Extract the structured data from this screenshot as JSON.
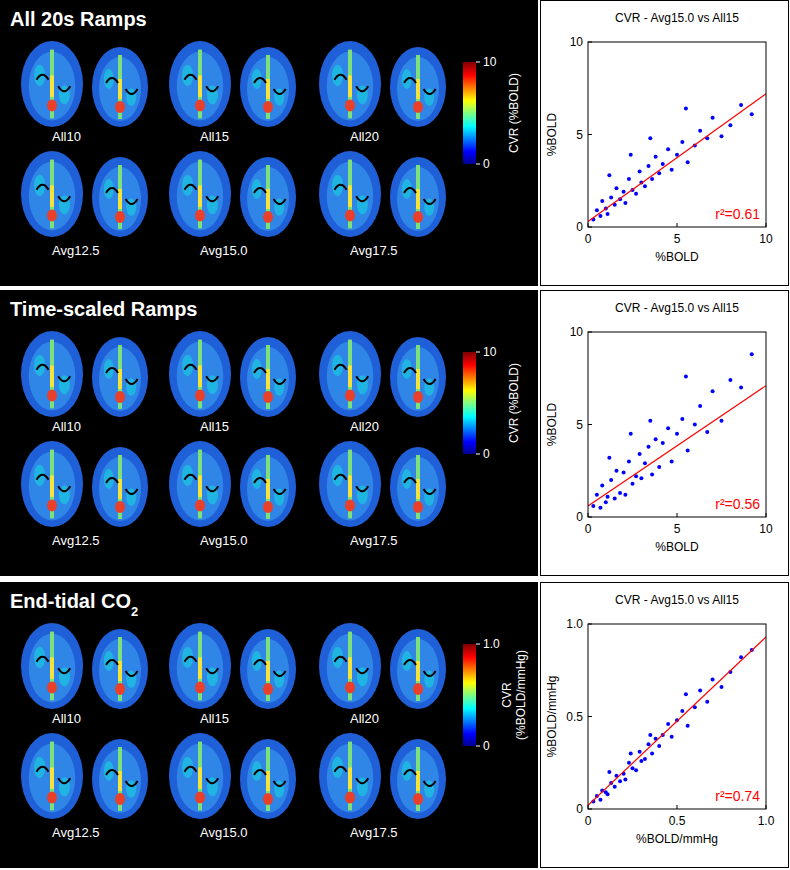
{
  "panels": [
    {
      "title": "All 20s Ramps",
      "maps": [
        "All10",
        "All15",
        "All20",
        "Avg12.5",
        "Avg15.0",
        "Avg17.5"
      ],
      "colorbar": {
        "label": [
          "CVR (%BOLD)"
        ],
        "range": [
          0,
          10
        ],
        "ticks": [
          0,
          10
        ]
      }
    },
    {
      "title": "Time-scaled Ramps",
      "maps": [
        "All10",
        "All15",
        "All20",
        "Avg12.5",
        "Avg15.0",
        "Avg17.5"
      ],
      "colorbar": {
        "label": [
          "CVR (%BOLD)"
        ],
        "range": [
          0,
          10
        ],
        "ticks": [
          0,
          10
        ]
      }
    },
    {
      "title": "End-tidal CO",
      "title_sub": "2",
      "maps": [
        "All10",
        "All15",
        "All20",
        "Avg12.5",
        "Avg15.0",
        "Avg17.5"
      ],
      "colorbar": {
        "label": [
          "CVR",
          "(%BOLD/mmHg)"
        ],
        "range": [
          0,
          1
        ],
        "ticks": [
          0,
          {
            "value": 1,
            "label": "1.0"
          }
        ]
      }
    }
  ],
  "chart_data": [
    {
      "type": "scatter",
      "title": "CVR - Avg15.0 vs All15",
      "x_label": "%BOLD",
      "y_label": "%BOLD",
      "color": "#0000ff",
      "xlim": [
        0,
        10
      ],
      "ylim": [
        0,
        10
      ],
      "xticks": [
        0,
        5,
        10
      ],
      "yticks": [
        0,
        5,
        10
      ],
      "x": [
        0.3,
        0.5,
        0.7,
        0.8,
        1.0,
        1.1,
        1.3,
        1.5,
        1.6,
        1.8,
        2.0,
        2.1,
        2.3,
        2.5,
        2.7,
        2.9,
        3.0,
        3.2,
        3.4,
        3.6,
        3.8,
        4.0,
        4.2,
        4.5,
        4.7,
        5.0,
        5.3,
        5.6,
        6.0,
        6.3,
        6.7,
        7.0,
        7.5,
        8.0,
        8.6,
        9.2,
        1.2,
        2.4,
        3.5,
        5.5
      ],
      "y": [
        0.4,
        0.9,
        0.6,
        1.4,
        1.0,
        0.7,
        1.6,
        1.2,
        2.1,
        1.5,
        1.9,
        1.3,
        2.6,
        2.0,
        1.8,
        3.0,
        2.4,
        2.2,
        3.3,
        2.6,
        3.8,
        2.9,
        3.4,
        4.2,
        3.1,
        3.9,
        4.6,
        3.5,
        4.4,
        5.2,
        4.8,
        5.9,
        4.9,
        5.5,
        6.6,
        6.1,
        2.8,
        3.9,
        4.8,
        6.4
      ],
      "fit_line": {
        "color": "#ff0000",
        "x": [
          0,
          10
        ],
        "y": [
          0.3,
          7.2
        ]
      },
      "annotation": "r²=0.61"
    },
    {
      "type": "scatter",
      "title": "CVR - Avg15.0 vs All15",
      "x_label": "%BOLD",
      "y_label": "%BOLD",
      "color": "#0000ff",
      "xlim": [
        0,
        10
      ],
      "ylim": [
        0,
        10
      ],
      "xticks": [
        0,
        5,
        10
      ],
      "yticks": [
        0,
        5,
        10
      ],
      "x": [
        0.3,
        0.5,
        0.7,
        0.8,
        1.0,
        1.1,
        1.3,
        1.5,
        1.6,
        1.8,
        2.0,
        2.1,
        2.3,
        2.5,
        2.7,
        2.9,
        3.0,
        3.2,
        3.4,
        3.6,
        3.8,
        4.0,
        4.2,
        4.5,
        4.7,
        5.0,
        5.3,
        5.6,
        6.0,
        6.3,
        6.7,
        7.0,
        7.5,
        8.0,
        8.6,
        9.2,
        1.2,
        2.4,
        3.5,
        5.5
      ],
      "y": [
        0.6,
        1.2,
        0.5,
        1.7,
        0.8,
        1.1,
        2.0,
        1.0,
        2.5,
        1.3,
        2.4,
        1.2,
        3.0,
        1.8,
        2.2,
        3.4,
        2.1,
        2.9,
        3.8,
        2.3,
        4.2,
        2.7,
        4.0,
        4.8,
        3.0,
        4.5,
        5.3,
        3.6,
        5.0,
        6.0,
        4.6,
        6.8,
        5.2,
        7.4,
        7.0,
        8.8,
        3.2,
        4.5,
        5.2,
        7.6
      ],
      "fit_line": {
        "color": "#ff0000",
        "x": [
          0,
          10
        ],
        "y": [
          0.6,
          7.1
        ]
      },
      "annotation": "r²=0.56"
    },
    {
      "type": "scatter",
      "title": "CVR - Avg15.0 vs All15",
      "x_label": "%BOLD/mmHg",
      "y_label": "%BOLD/mmHg",
      "color": "#0000ff",
      "xlim": [
        0,
        1
      ],
      "ylim": [
        0,
        1
      ],
      "xticks": [
        0,
        0.5,
        {
          "value": 1,
          "label": "1.0"
        }
      ],
      "yticks": [
        0,
        0.5,
        {
          "value": 1,
          "label": "1.0"
        }
      ],
      "x": [
        0.03,
        0.05,
        0.07,
        0.08,
        0.1,
        0.11,
        0.13,
        0.15,
        0.16,
        0.18,
        0.2,
        0.21,
        0.23,
        0.25,
        0.27,
        0.29,
        0.3,
        0.32,
        0.34,
        0.36,
        0.38,
        0.4,
        0.42,
        0.45,
        0.47,
        0.5,
        0.53,
        0.56,
        0.6,
        0.63,
        0.67,
        0.7,
        0.75,
        0.8,
        0.86,
        0.92,
        0.12,
        0.24,
        0.35,
        0.55
      ],
      "y": [
        0.04,
        0.07,
        0.05,
        0.1,
        0.09,
        0.08,
        0.14,
        0.12,
        0.18,
        0.15,
        0.19,
        0.16,
        0.25,
        0.22,
        0.21,
        0.31,
        0.26,
        0.27,
        0.35,
        0.3,
        0.38,
        0.34,
        0.4,
        0.46,
        0.39,
        0.48,
        0.53,
        0.45,
        0.55,
        0.64,
        0.58,
        0.7,
        0.66,
        0.74,
        0.82,
        0.86,
        0.2,
        0.3,
        0.4,
        0.62
      ],
      "fit_line": {
        "color": "#ff0000",
        "x": [
          0,
          1
        ],
        "y": [
          0.02,
          0.93
        ]
      },
      "annotation": "r²=0.74"
    }
  ]
}
